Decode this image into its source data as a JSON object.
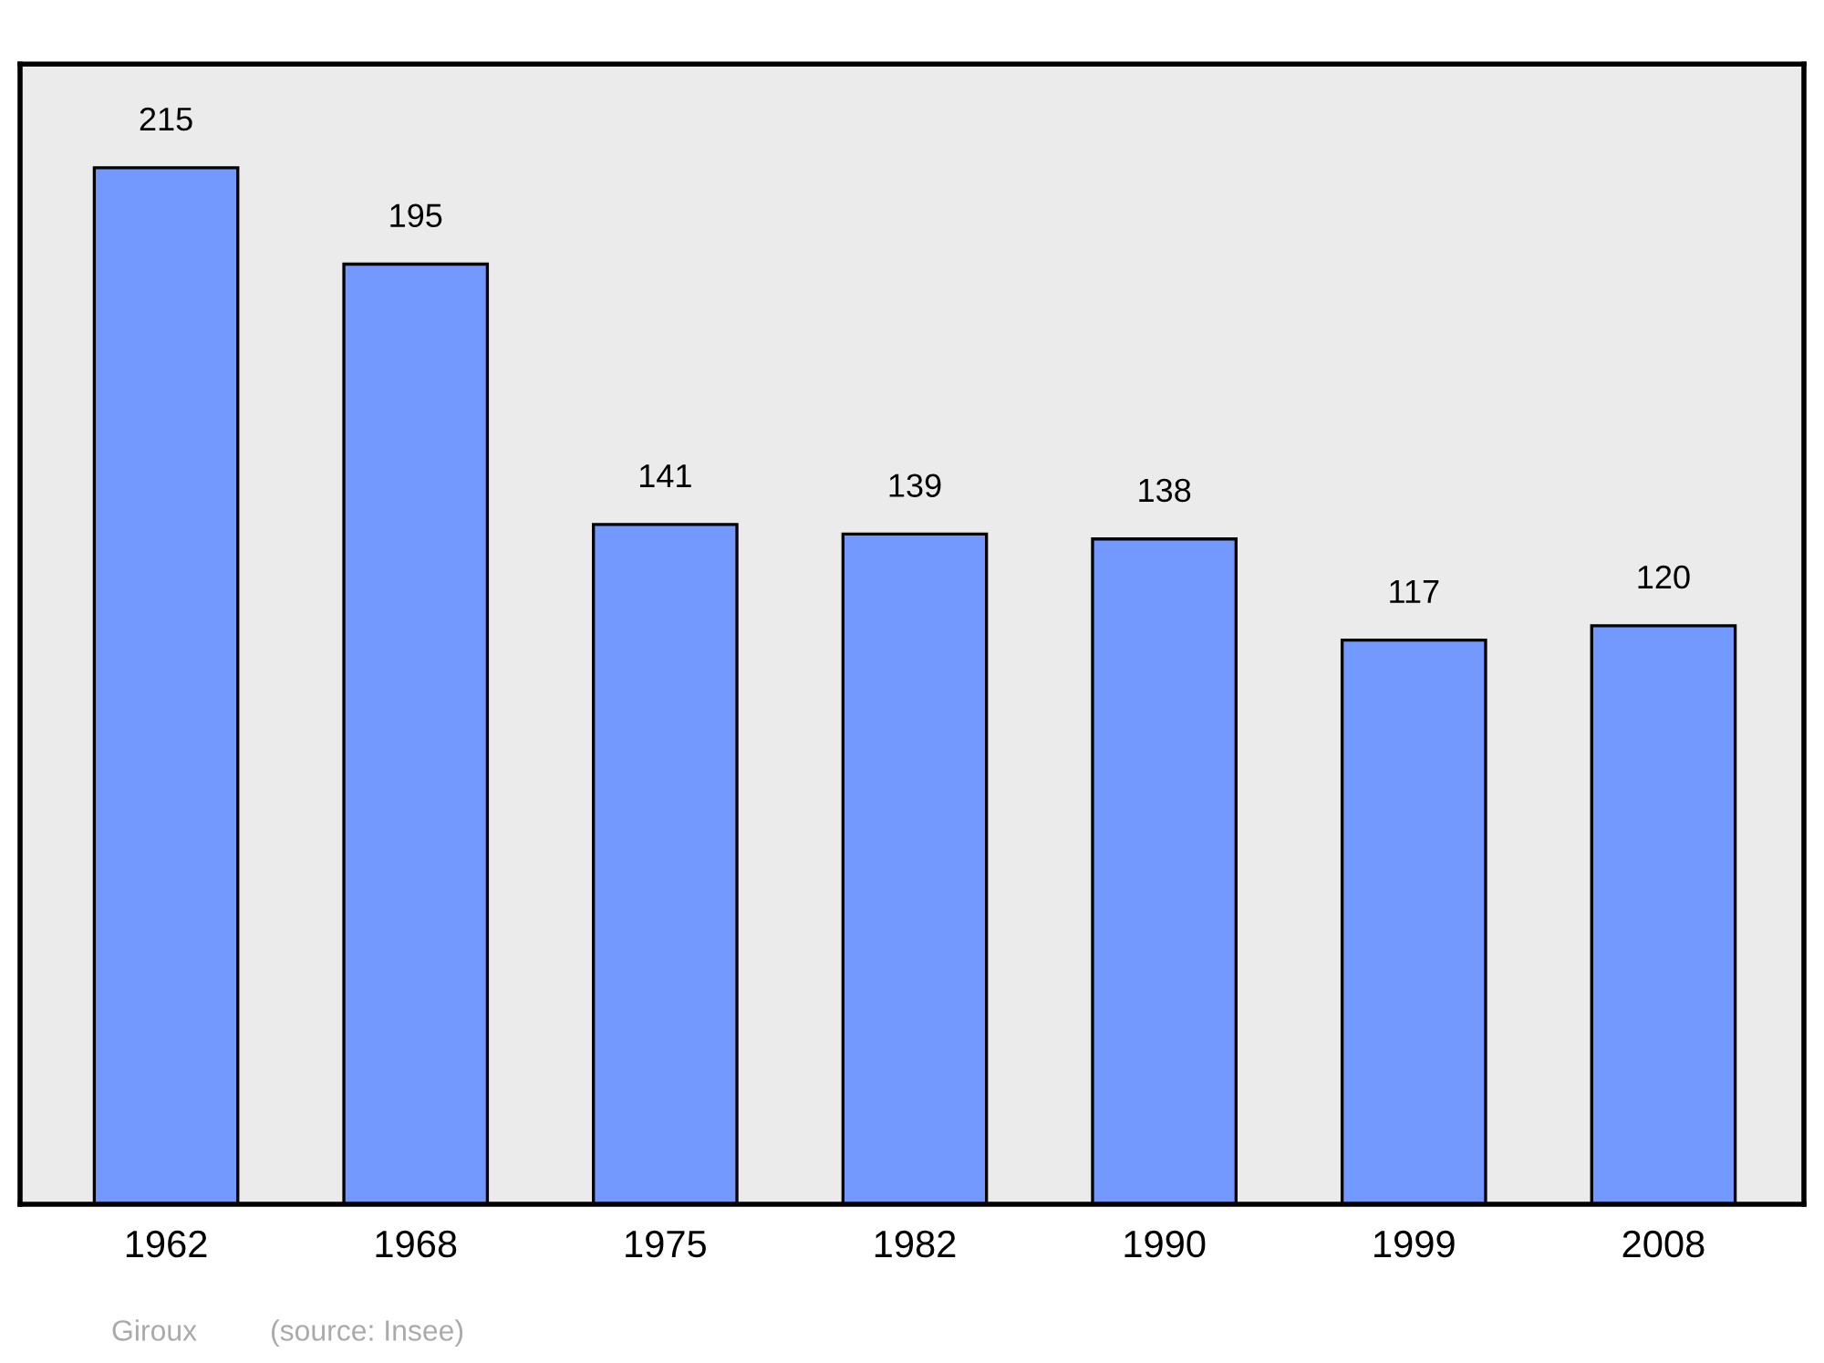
{
  "chart_data": {
    "type": "bar",
    "categories": [
      "1962",
      "1968",
      "1975",
      "1982",
      "1990",
      "1999",
      "2008"
    ],
    "values": [
      215,
      195,
      141,
      139,
      138,
      117,
      120
    ],
    "color": "#7399ff",
    "data_labels": true,
    "grid": false,
    "legend": false,
    "annotations": [
      "Giroux",
      "(source: Insee)"
    ]
  }
}
